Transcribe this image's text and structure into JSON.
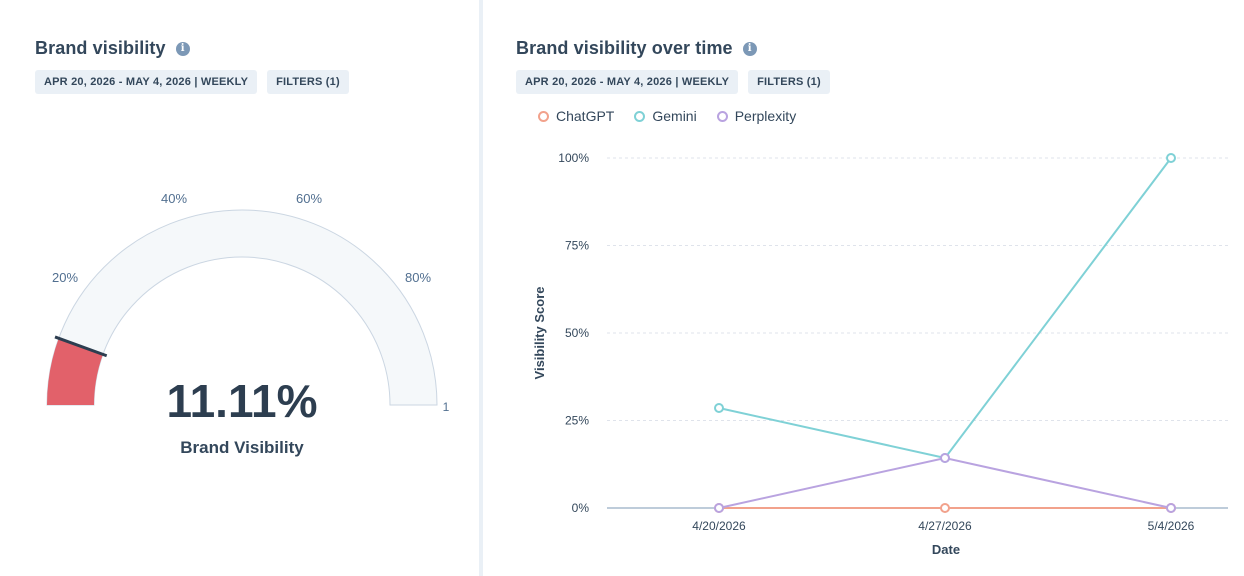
{
  "left_card": {
    "title": "Brand visibility",
    "info_icon": "info-icon",
    "date_filter": "APR 20, 2026 - MAY 4, 2026 | WEEKLY",
    "filters_label": "FILTERS (1)"
  },
  "gauge": {
    "value_percent": 11.11,
    "value_label": "11.11%",
    "caption": "Brand Visibility",
    "tick_labels": [
      "20%",
      "40%",
      "60%",
      "80%",
      "1"
    ],
    "fill_color": "#e2616a",
    "track_color": "#f5f8fa",
    "needle_color": "#2d3e50"
  },
  "right_card": {
    "title": "Brand visibility over time",
    "info_icon": "info-icon",
    "date_filter": "APR 20, 2026 - MAY 4, 2026 | WEEKLY",
    "filters_label": "FILTERS (1)"
  },
  "chart_data": {
    "type": "line",
    "title": "Brand visibility over time",
    "xlabel": "Date",
    "ylabel": "Visibility Score",
    "x": [
      "4/20/2026",
      "4/27/2026",
      "5/4/2026"
    ],
    "y_ticks": [
      "0%",
      "25%",
      "50%",
      "75%",
      "100%"
    ],
    "ylim": [
      0,
      100
    ],
    "grid": true,
    "legend_position": "top-left",
    "series": [
      {
        "name": "ChatGPT",
        "color": "#f2a28c",
        "values": [
          0,
          0,
          0
        ]
      },
      {
        "name": "Gemini",
        "color": "#7fd1d6",
        "values": [
          28.57,
          14.29,
          100
        ]
      },
      {
        "name": "Perplexity",
        "color": "#b9a3e0",
        "values": [
          0,
          14.29,
          0
        ]
      }
    ]
  }
}
